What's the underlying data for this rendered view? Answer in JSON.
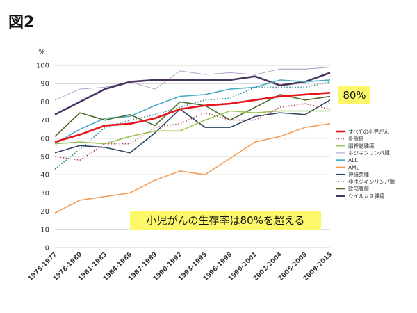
{
  "figure_label": "図2",
  "callouts": {
    "value_label": "80%",
    "main": "小児がんの生存率は80%を超える"
  },
  "chart_data": {
    "type": "line",
    "title": "",
    "xlabel": "",
    "ylabel": "%",
    "ylim": [
      0,
      100
    ],
    "yticks": [
      0,
      10,
      20,
      30,
      40,
      50,
      60,
      70,
      80,
      90,
      100
    ],
    "grid": true,
    "legend_position": "right",
    "categories": [
      "1975-1977",
      "1978-1980",
      "1981-1983",
      "1984-1986",
      "1987-1989",
      "1990-1992",
      "1993-1995",
      "1996-1998",
      "1999-2001",
      "2002-2004",
      "2005-2008",
      "2009-2015"
    ],
    "series": [
      {
        "name": "すべての小児がん",
        "color": "#e8141b",
        "style": "solid-bold",
        "values": [
          58,
          62,
          67,
          68,
          71,
          76,
          78,
          79,
          81,
          83,
          84,
          85
        ]
      },
      {
        "name": "骨腫瘍",
        "color": "#b0425a",
        "style": "dotted",
        "values": [
          50,
          48,
          57,
          57,
          66,
          68,
          74,
          70,
          70,
          77,
          79,
          76
        ]
      },
      {
        "name": "脳脊髄腫瘍",
        "color": "#9bc455",
        "style": "solid",
        "values": [
          57,
          58,
          57,
          61,
          64,
          64,
          70,
          75,
          74,
          75,
          75,
          75
        ]
      },
      {
        "name": "ホジキンリンパ腫",
        "color": "#a99ac6",
        "style": "solid-thin",
        "values": [
          81,
          87,
          88,
          91,
          87,
          97,
          95,
          96,
          95,
          98,
          98,
          99
        ]
      },
      {
        "name": "ALL",
        "color": "#4bacc6",
        "style": "solid",
        "values": [
          57,
          65,
          71,
          72,
          78,
          83,
          84,
          87,
          88,
          92,
          91,
          92
        ]
      },
      {
        "name": "AML",
        "color": "#f59d56",
        "style": "solid",
        "values": [
          19,
          26,
          28,
          30,
          37,
          42,
          40,
          49,
          58,
          61,
          66,
          68
        ]
      },
      {
        "name": "神経芽腫",
        "color": "#2b4566",
        "style": "solid",
        "values": [
          52,
          56,
          55,
          52,
          63,
          76,
          66,
          66,
          72,
          74,
          73,
          81
        ]
      },
      {
        "name": "非ホジキンリンパ腫",
        "color": "#2e8b9a",
        "style": "dotted",
        "values": [
          43,
          54,
          66,
          70,
          73,
          77,
          81,
          82,
          88,
          88,
          88,
          91
        ]
      },
      {
        "name": "軟部腫瘍",
        "color": "#4d6b2d",
        "style": "solid",
        "values": [
          61,
          74,
          70,
          73,
          67,
          80,
          78,
          70,
          77,
          84,
          81,
          83
        ]
      },
      {
        "name": "ウイルムス腫瘍",
        "color": "#4a3460",
        "style": "solid-bold",
        "values": [
          73,
          80,
          87,
          91,
          92,
          92,
          92,
          92,
          94,
          89,
          91,
          96
        ]
      }
    ]
  }
}
